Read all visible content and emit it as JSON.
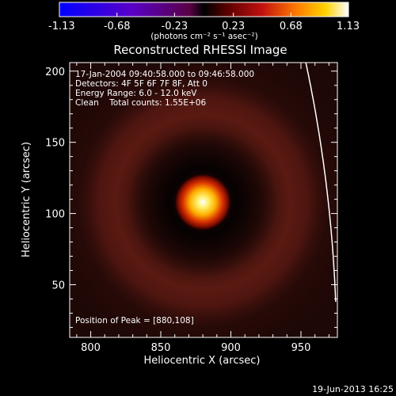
{
  "chart_data": {
    "type": "heatmap",
    "title": "Reconstructed RHESSI Image",
    "xlabel": "Heliocentric X (arcsec)",
    "ylabel": "Heliocentric Y (arcsec)",
    "xlim": [
      785,
      976
    ],
    "ylim": [
      13,
      206
    ],
    "x_ticks": [
      800,
      850,
      900,
      950
    ],
    "y_ticks": [
      50,
      100,
      150,
      200
    ],
    "peak": {
      "x": 880,
      "y": 108
    },
    "ring_radius_arcsec": 80,
    "colorbar": {
      "title": "(photons cm⁻² s⁻¹ asec⁻²)",
      "range": [
        -1.13,
        1.13
      ],
      "tick_labels": [
        "-1.13",
        "-0.68",
        "-0.23",
        "0.23",
        "0.68",
        "1.13"
      ],
      "tick_values": [
        -1.13,
        -0.68,
        -0.23,
        0.23,
        0.68,
        1.13
      ]
    },
    "annotations": {
      "time_range": "17-Jan-2004 09:40:58.000 to 09:46:58.000",
      "detectors": "Detectors: 4F 5F 6F 7F 8F, Att 0",
      "energy_range": "Energy Range: 6.0 - 12.0 keV",
      "clean_counts": "Clean    Total counts: 1.55E+06",
      "peak_position": "Position of Peak = [880,108]"
    },
    "limb_color": "#ffffff",
    "timestamp": "19-Jun-2013 16:25"
  }
}
